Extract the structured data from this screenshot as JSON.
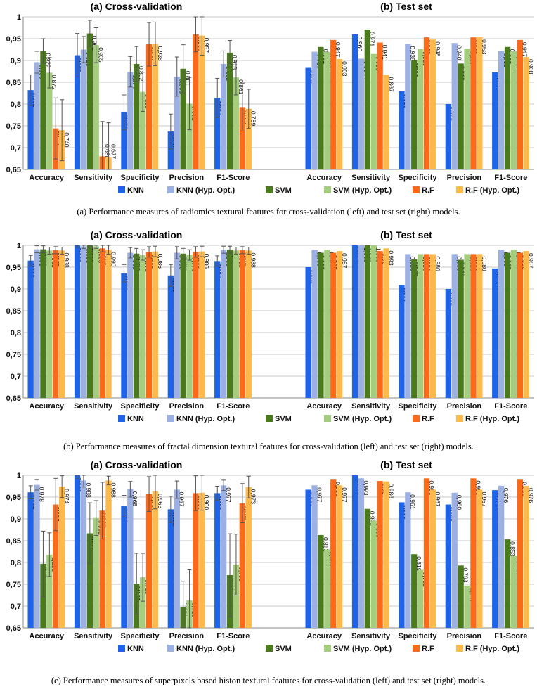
{
  "captions": [
    "(a) Performance measures of radiomics textural features for cross-validation (left) and test set (right) models.",
    "(b) Performance measures of fractal dimension textural features for cross-validation (left) and test set (right) models.",
    "(c) Performance measures of superpixels based histon textural features for cross-validation (left) and test set (right) models."
  ],
  "chart_data": [
    {
      "type": "bar",
      "panel_titles": [
        "(a) Cross-validation",
        "(b) Test set"
      ],
      "categories": [
        "Accuracy",
        "Sensitivity",
        "Specificity",
        "Precision",
        "F1-Score"
      ],
      "ylim": [
        0.65,
        1
      ],
      "yticks": [
        "0,65",
        "0,7",
        "0,75",
        "0,8",
        "0,85",
        "0,9",
        "0,95",
        "1"
      ],
      "grid": true,
      "legend_position": "bottom",
      "colors": [
        "#1f63e8",
        "#9db0e3",
        "#4b7a1d",
        "#a4cd7d",
        "#fb6a19",
        "#fdb94a"
      ],
      "series": [
        {
          "name": "KNN",
          "cv": [
            0.832,
            0.912,
            0.781,
            0.737,
            0.814
          ],
          "cv_err": [
            0.035,
            0.05,
            0.04,
            0.04,
            0.045
          ],
          "test": [
            0.883,
            0.96,
            0.829,
            0.8,
            0.873
          ],
          "cv_labels": [
            "0,832",
            "0,912",
            "0,781",
            "0,737",
            "0,814"
          ],
          "test_labels": [
            "0,883",
            "0,960",
            "0,829",
            "0,800",
            "0,873"
          ]
        },
        {
          "name": "KNN (Hyp. Opt.)",
          "cv": [
            0.896,
            0.925,
            0.874,
            0.863,
            0.892
          ],
          "cv_err": [
            0.025,
            0.03,
            0.035,
            0.045,
            0.03
          ],
          "test": [
            0.92,
            0.904,
            0.938,
            0.94,
            0.922
          ],
          "cv_labels": [
            "0,896",
            "0,925",
            "0,874",
            "0,863",
            "0,892"
          ],
          "test_labels": [
            "0,920",
            "0,904",
            "0,938",
            "0,940",
            "0,922"
          ]
        },
        {
          "name": "SVM",
          "cv": [
            0.922,
            0.962,
            0.892,
            0.881,
            0.918
          ],
          "cv_err": [
            0.028,
            0.03,
            0.04,
            0.055,
            0.028
          ],
          "test": [
            0.931,
            0.971,
            0.901,
            0.893,
            0.931
          ],
          "cv_labels": [
            "0,922",
            "0,962",
            "0,892",
            "0,881",
            "0,918"
          ],
          "test_labels": [
            "0,931",
            "0,971",
            "0,901",
            "0,893",
            "0,931"
          ]
        },
        {
          "name": "SVM (Hyp. Opt.)",
          "cv": [
            0.872,
            0.935,
            0.828,
            0.801,
            0.861
          ],
          "cv_err": [
            0.035,
            0.04,
            0.045,
            0.06,
            0.04
          ],
          "test": [
            0.92,
            0.915,
            0.926,
            0.927,
            0.921
          ],
          "cv_labels": [
            "0,872",
            "0,935",
            "0,828",
            "0,801",
            "0,861"
          ],
          "test_labels": [
            "0,920",
            "0,915",
            "0,926",
            "0,927",
            "0,921"
          ]
        },
        {
          "name": "R.F",
          "cv": [
            0.744,
            0.68,
            0.937,
            0.96,
            0.793
          ],
          "cv_err": [
            0.07,
            0.08,
            0.05,
            0.04,
            0.055
          ],
          "test": [
            0.947,
            0.941,
            0.953,
            0.953,
            0.947
          ],
          "cv_labels": [
            "0,744",
            "0,680",
            "0,937",
            "0,960",
            "0,793"
          ],
          "test_labels": [
            "0,947",
            "0,941",
            "0,953",
            "0,953",
            "0,947"
          ]
        },
        {
          "name": "R.F (Hyp. Opt.)",
          "cv": [
            0.74,
            0.677,
            0.938,
            0.957,
            0.789
          ],
          "cv_err": [
            0.07,
            0.08,
            0.05,
            0.045,
            0.045
          ],
          "test": [
            0.903,
            0.867,
            0.948,
            0.953,
            0.908
          ],
          "cv_labels": [
            "0,740",
            "0,677",
            "0,938",
            "0,957",
            "0,789"
          ],
          "test_labels": [
            "0,903",
            "0,867",
            "0,948",
            "0,953",
            "0,908"
          ]
        }
      ]
    },
    {
      "type": "bar",
      "panel_titles": [
        "(a) Cross-validation",
        "(b) Test set"
      ],
      "categories": [
        "Accuracy",
        "Sensitivity",
        "Specificity",
        "Precision",
        "F1-Score"
      ],
      "ylim": [
        0.65,
        1
      ],
      "yticks": [
        "0,65",
        "0,7",
        "0,75",
        "0,8",
        "0,85",
        "0,9",
        "0,95",
        "1"
      ],
      "grid": true,
      "legend_position": "bottom",
      "colors": [
        "#1f63e8",
        "#9db0e3",
        "#4b7a1d",
        "#a4cd7d",
        "#fb6a19",
        "#fdb94a"
      ],
      "series": [
        {
          "name": "KNN",
          "cv": [
            0.965,
            1.0,
            0.936,
            0.931,
            0.964
          ],
          "cv_err": [
            0.012,
            0.005,
            0.02,
            0.025,
            0.012
          ],
          "test": [
            0.95,
            1.0,
            0.909,
            0.9,
            0.947
          ],
          "cv_labels": [
            "0,965",
            "1,000",
            "0,936",
            "0,931",
            "0,964"
          ],
          "test_labels": [
            "0,950",
            "1,000",
            "0,909",
            "0,900",
            "0,947"
          ]
        },
        {
          "name": "KNN (Hyp. Opt.)",
          "cv": [
            0.991,
            0.998,
            0.983,
            0.983,
            0.99
          ],
          "cv_err": [
            0.008,
            0.005,
            0.012,
            0.014,
            0.008
          ],
          "test": [
            0.99,
            1.0,
            0.98,
            0.98,
            0.99
          ],
          "cv_labels": [
            "0,991",
            "0,998",
            "0,983",
            "0,983",
            "0,990"
          ],
          "test_labels": [
            "0,990",
            "1,000",
            "0,980",
            "0,980",
            "0,990"
          ]
        },
        {
          "name": "SVM",
          "cv": [
            0.991,
            1.0,
            0.981,
            0.981,
            0.99
          ],
          "cv_err": [
            0.008,
            0.005,
            0.012,
            0.012,
            0.008
          ],
          "test": [
            0.983,
            1.0,
            0.968,
            0.967,
            0.983
          ],
          "cv_labels": [
            "0,991",
            "1,000",
            "0,981",
            "0,981",
            "0,990"
          ],
          "test_labels": [
            "0,983",
            "1,000",
            "0,968",
            "0,967",
            "0,983"
          ]
        },
        {
          "name": "SVM (Hyp. Opt.)",
          "cv": [
            0.988,
            0.998,
            0.978,
            0.978,
            0.988
          ],
          "cv_err": [
            0.008,
            0.005,
            0.012,
            0.012,
            0.008
          ],
          "test": [
            0.99,
            1.0,
            0.98,
            0.98,
            0.99
          ],
          "cv_labels": [
            "0,988",
            "0,998",
            "0,978",
            "0,978",
            "0,988"
          ],
          "test_labels": [
            "0,990",
            "1,000",
            "0,980",
            "0,980",
            "0,990"
          ]
        },
        {
          "name": "R.F",
          "cv": [
            0.989,
            0.993,
            0.985,
            0.985,
            0.989
          ],
          "cv_err": [
            0.008,
            0.008,
            0.012,
            0.012,
            0.008
          ],
          "test": [
            0.983,
            0.987,
            0.98,
            0.98,
            0.983
          ],
          "cv_labels": [
            "0,989",
            "0,993",
            "0,985",
            "0,985",
            "0,989"
          ],
          "test_labels": [
            "0,983",
            "0,987",
            "0,980",
            "0,980",
            "0,983"
          ]
        },
        {
          "name": "R.F (Hyp. Opt.)",
          "cv": [
            0.988,
            0.99,
            0.986,
            0.986,
            0.988
          ],
          "cv_err": [
            0.008,
            0.01,
            0.012,
            0.012,
            0.008
          ],
          "test": [
            0.987,
            0.993,
            0.98,
            0.98,
            0.987
          ],
          "cv_labels": [
            "0,988",
            "0,990",
            "0,986",
            "0,986",
            "0,988"
          ],
          "test_labels": [
            "0,987",
            "0,993",
            "0,980",
            "0,980",
            "0,987"
          ]
        }
      ]
    },
    {
      "type": "bar",
      "panel_titles": [
        "(a) Cross-validation",
        "(b) Test set"
      ],
      "categories": [
        "Accuracy",
        "Sensitivity",
        "Specificity",
        "Precision",
        "F1-Score"
      ],
      "ylim": [
        0.65,
        1
      ],
      "yticks": [
        "0,65",
        "0,7",
        "0,75",
        "0,8",
        "0,85",
        "0,9",
        "0,95",
        "1"
      ],
      "grid": true,
      "legend_position": "bottom",
      "colors": [
        "#1f63e8",
        "#9db0e3",
        "#4b7a1d",
        "#a4cd7d",
        "#fb6a19",
        "#fdb94a"
      ],
      "series": [
        {
          "name": "KNN",
          "cv": [
            0.961,
            1.0,
            0.929,
            0.922,
            0.959
          ],
          "cv_err": [
            0.015,
            0.008,
            0.025,
            0.03,
            0.016
          ],
          "test": [
            0.967,
            1.0,
            0.938,
            0.933,
            0.966
          ],
          "cv_labels": [
            "0,961",
            "1,000",
            "0,929",
            "0,922",
            "0,959"
          ],
          "test_labels": [
            "0,967",
            "1,000",
            "0,938",
            "0,933",
            "0,966"
          ]
        },
        {
          "name": "KNN (Hyp. Opt.)",
          "cv": [
            0.978,
            0.988,
            0.968,
            0.967,
            0.977
          ],
          "cv_err": [
            0.012,
            0.015,
            0.018,
            0.02,
            0.012
          ],
          "test": [
            0.977,
            0.993,
            0.961,
            0.96,
            0.976
          ],
          "cv_labels": [
            "0,978",
            "0,988",
            "0,968",
            "0,967",
            "0,977"
          ],
          "test_labels": [
            "0,977",
            "0,993",
            "0,961",
            "0,960",
            "0,976"
          ]
        },
        {
          "name": "SVM",
          "cv": [
            0.797,
            0.867,
            0.751,
            0.697,
            0.771
          ],
          "cv_err": [
            0.075,
            0.07,
            0.07,
            0.06,
            0.095
          ],
          "test": [
            0.863,
            0.923,
            0.819,
            0.793,
            0.853
          ],
          "cv_labels": [
            "0,797",
            "0,867",
            "0,751",
            "0,697",
            "0,771"
          ],
          "test_labels": [
            "0,863",
            "0,923",
            "0,819",
            "0,793",
            "0,853"
          ]
        },
        {
          "name": "SVM (Hyp. Opt.)",
          "cv": [
            0.818,
            0.902,
            0.766,
            0.713,
            0.795
          ],
          "cv_err": [
            0.05,
            0.04,
            0.055,
            0.07,
            0.07
          ],
          "test": [
            0.83,
            0.896,
            0.783,
            0.747,
            0.815
          ],
          "cv_labels": [
            "0,818",
            "0,902",
            "0,766",
            "0,713",
            "0,795"
          ],
          "test_labels": [
            "0,830",
            "0,896",
            "0,783",
            "0,747",
            "0,815"
          ]
        },
        {
          "name": "R.F",
          "cv": [
            0.933,
            0.919,
            0.957,
            0.959,
            0.936
          ],
          "cv_err": [
            0.06,
            0.065,
            0.04,
            0.04,
            0.045
          ],
          "test": [
            0.99,
            0.987,
            0.993,
            0.993,
            0.99
          ],
          "cv_labels": [
            "0,933",
            "0,919",
            "0,957",
            "0,959",
            "0,936"
          ],
          "test_labels": [
            "0,990",
            "0,987",
            "0,993",
            "0,993",
            "0,990"
          ]
        },
        {
          "name": "R.F (Hyp. Opt.)",
          "cv": [
            0.974,
            0.988,
            0.963,
            0.96,
            0.973
          ],
          "cv_err": [
            0.025,
            0.01,
            0.04,
            0.04,
            0.025
          ],
          "test": [
            0.977,
            0.986,
            0.967,
            0.967,
            0.976
          ],
          "cv_labels": [
            "0,974",
            "0,988",
            "0,963",
            "0,960",
            "0,973"
          ],
          "test_labels": [
            "0,977",
            "0,986",
            "0,967",
            "0,967",
            "0,976"
          ]
        }
      ]
    }
  ]
}
